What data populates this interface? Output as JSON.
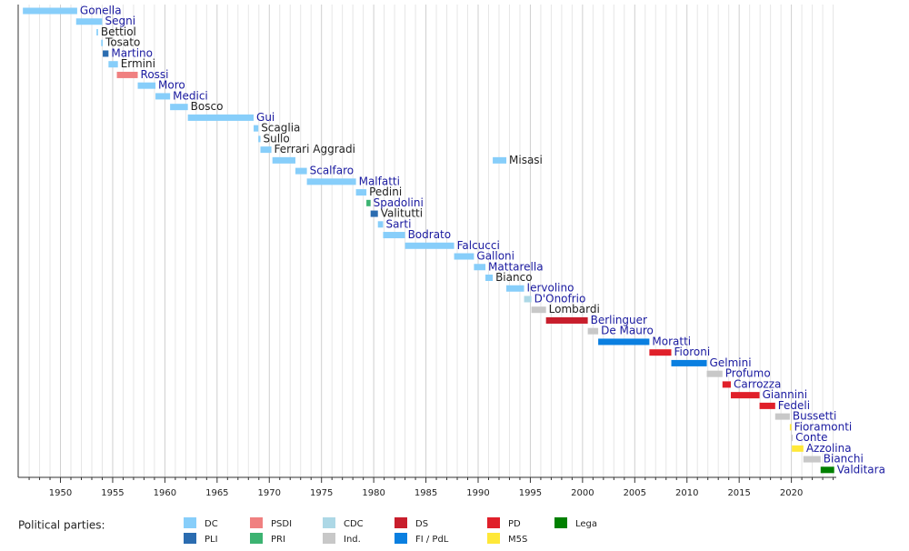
{
  "chart_data": {
    "type": "timeline",
    "xlim": [
      1945.95,
      2024.3
    ],
    "xticks": [
      1950,
      1955,
      1960,
      1965,
      1970,
      1975,
      1980,
      1985,
      1990,
      1995,
      2000,
      2005,
      2010,
      2015,
      2020
    ],
    "xminor_ticks": [
      1947,
      1948,
      1949,
      1951,
      1952,
      1953,
      1954,
      1956,
      1957,
      1958,
      1959,
      1961,
      1962,
      1963,
      1964,
      1966,
      1967,
      1968,
      1969,
      1971,
      1972,
      1973,
      1974,
      1976,
      1977,
      1978,
      1979,
      1981,
      1982,
      1983,
      1984,
      1986,
      1987,
      1988,
      1989,
      1991,
      1992,
      1993,
      1994,
      1996,
      1997,
      1998,
      1999,
      2001,
      2002,
      2003,
      2004,
      2006,
      2007,
      2008,
      2009,
      2011,
      2012,
      2013,
      2014,
      2016,
      2017,
      2018,
      2019,
      2021,
      2022,
      2023,
      2024
    ],
    "grid": true,
    "legend_title": "Political parties:",
    "parties": [
      {
        "name": "DC",
        "color": "#87cefa"
      },
      {
        "name": "PLI",
        "color": "#2b6cb0"
      },
      {
        "name": "PSDI",
        "color": "#f08080"
      },
      {
        "name": "PRI",
        "color": "#3cb371"
      },
      {
        "name": "CDC",
        "color": "#add8e6"
      },
      {
        "name": "Ind.",
        "color": "#c8c8c8"
      },
      {
        "name": "DS",
        "color": "#c81e2c"
      },
      {
        "name": "FI / PdL",
        "color": "#0a7fe0"
      },
      {
        "name": "PD",
        "color": "#e0202a"
      },
      {
        "name": "M5S",
        "color": "#ffe838"
      },
      {
        "name": "Lega",
        "color": "#008000"
      }
    ],
    "link_color": "#1a1aa0",
    "text_color": "#222222",
    "rows": [
      {
        "name": "Gonella",
        "party": "DC",
        "link": true,
        "spans": [
          [
            1946.4,
            1951.6
          ]
        ]
      },
      {
        "name": "Segni",
        "party": "DC",
        "link": true,
        "spans": [
          [
            1951.5,
            1954.0
          ]
        ]
      },
      {
        "name": "Bettiol",
        "party": "DC",
        "link": false,
        "spans": [
          [
            1953.45,
            1953.6
          ]
        ]
      },
      {
        "name": "Tosato",
        "party": "DC",
        "link": false,
        "spans": [
          [
            1953.9,
            1954.05
          ]
        ]
      },
      {
        "name": "Martino",
        "party": "PLI",
        "link": true,
        "spans": [
          [
            1954.05,
            1954.6
          ]
        ]
      },
      {
        "name": "Ermini",
        "party": "DC",
        "link": false,
        "spans": [
          [
            1954.6,
            1955.5
          ]
        ]
      },
      {
        "name": "Rossi",
        "party": "PSDI",
        "link": true,
        "spans": [
          [
            1955.4,
            1957.4
          ]
        ]
      },
      {
        "name": "Moro",
        "party": "DC",
        "link": true,
        "spans": [
          [
            1957.4,
            1959.1
          ]
        ]
      },
      {
        "name": "Medici",
        "party": "DC",
        "link": true,
        "spans": [
          [
            1959.1,
            1960.5
          ]
        ]
      },
      {
        "name": "Bosco",
        "party": "DC",
        "link": false,
        "spans": [
          [
            1960.5,
            1962.2
          ]
        ]
      },
      {
        "name": "Gui",
        "party": "DC",
        "link": true,
        "spans": [
          [
            1962.2,
            1968.5
          ]
        ]
      },
      {
        "name": "Scaglia",
        "party": "DC",
        "link": false,
        "spans": [
          [
            1968.5,
            1968.95
          ]
        ]
      },
      {
        "name": "Sullo",
        "party": "DC",
        "link": false,
        "spans": [
          [
            1968.95,
            1969.15
          ]
        ]
      },
      {
        "name": "Ferrari Aggradi",
        "party": "DC",
        "link": false,
        "spans": [
          [
            1969.15,
            1970.2
          ]
        ]
      },
      {
        "name": "Misasi",
        "party": "DC",
        "link": false,
        "spans": [
          [
            1970.3,
            1972.5
          ],
          [
            1991.4,
            1992.7
          ]
        ]
      },
      {
        "name": "Scalfaro",
        "party": "DC",
        "link": true,
        "spans": [
          [
            1972.5,
            1973.6
          ]
        ]
      },
      {
        "name": "Malfatti",
        "party": "DC",
        "link": true,
        "spans": [
          [
            1973.6,
            1978.3
          ]
        ]
      },
      {
        "name": "Pedini",
        "party": "DC",
        "link": false,
        "spans": [
          [
            1978.3,
            1979.3
          ]
        ]
      },
      {
        "name": "Spadolini",
        "party": "PRI",
        "link": true,
        "spans": [
          [
            1979.3,
            1979.7
          ]
        ]
      },
      {
        "name": "Valitutti",
        "party": "PLI",
        "link": false,
        "spans": [
          [
            1979.7,
            1980.4
          ]
        ]
      },
      {
        "name": "Sarti",
        "party": "DC",
        "link": true,
        "spans": [
          [
            1980.4,
            1980.9
          ]
        ]
      },
      {
        "name": "Bodrato",
        "party": "DC",
        "link": true,
        "spans": [
          [
            1980.9,
            1983.0
          ]
        ]
      },
      {
        "name": "Falcucci",
        "party": "DC",
        "link": true,
        "spans": [
          [
            1983.0,
            1987.7
          ]
        ]
      },
      {
        "name": "Galloni",
        "party": "DC",
        "link": true,
        "spans": [
          [
            1987.7,
            1989.6
          ]
        ]
      },
      {
        "name": "Mattarella",
        "party": "DC",
        "link": true,
        "spans": [
          [
            1989.6,
            1990.7
          ]
        ]
      },
      {
        "name": "Bianco",
        "party": "DC",
        "link": false,
        "spans": [
          [
            1990.7,
            1991.4
          ]
        ]
      },
      {
        "name": "Iervolino",
        "party": "DC",
        "link": true,
        "spans": [
          [
            1992.7,
            1994.4
          ]
        ]
      },
      {
        "name": "D'Onofrio",
        "party": "CDC",
        "link": true,
        "spans": [
          [
            1994.4,
            1995.1
          ]
        ]
      },
      {
        "name": "Lombardi",
        "party": "Ind.",
        "link": false,
        "spans": [
          [
            1995.1,
            1996.5
          ]
        ]
      },
      {
        "name": "Berlinguer",
        "party": "DS",
        "link": true,
        "spans": [
          [
            1996.5,
            2000.5
          ]
        ]
      },
      {
        "name": "De Mauro",
        "party": "Ind.",
        "link": true,
        "spans": [
          [
            2000.5,
            2001.5
          ]
        ]
      },
      {
        "name": "Moratti",
        "party": "FI / PdL",
        "link": true,
        "spans": [
          [
            2001.5,
            2006.4
          ]
        ]
      },
      {
        "name": "Fioroni",
        "party": "PD",
        "link": true,
        "spans": [
          [
            2006.4,
            2008.5
          ]
        ]
      },
      {
        "name": "Gelmini",
        "party": "FI / PdL",
        "link": true,
        "spans": [
          [
            2008.5,
            2011.9
          ]
        ]
      },
      {
        "name": "Profumo",
        "party": "Ind.",
        "link": true,
        "spans": [
          [
            2011.9,
            2013.4
          ]
        ]
      },
      {
        "name": "Carrozza",
        "party": "PD",
        "link": true,
        "spans": [
          [
            2013.4,
            2014.2
          ]
        ]
      },
      {
        "name": "Giannini",
        "party": "PD",
        "link": true,
        "spans": [
          [
            2014.2,
            2016.95
          ]
        ]
      },
      {
        "name": "Fedeli",
        "party": "PD",
        "link": true,
        "spans": [
          [
            2016.95,
            2018.45
          ]
        ]
      },
      {
        "name": "Bussetti",
        "party": "Ind.",
        "link": true,
        "spans": [
          [
            2018.45,
            2019.85
          ]
        ]
      },
      {
        "name": "Fioramonti",
        "party": "M5S",
        "link": true,
        "spans": [
          [
            2019.85,
            2020.0
          ]
        ]
      },
      {
        "name": "Conte",
        "party": "Ind.",
        "link": true,
        "spans": [
          [
            2020.0,
            2020.05
          ]
        ]
      },
      {
        "name": "Azzolina",
        "party": "M5S",
        "link": true,
        "spans": [
          [
            2020.05,
            2021.15
          ]
        ]
      },
      {
        "name": "Bianchi",
        "party": "Ind.",
        "link": true,
        "spans": [
          [
            2021.15,
            2022.8
          ]
        ]
      },
      {
        "name": "Valditara",
        "party": "Lega",
        "link": true,
        "spans": [
          [
            2022.8,
            2024.1
          ]
        ]
      }
    ]
  }
}
